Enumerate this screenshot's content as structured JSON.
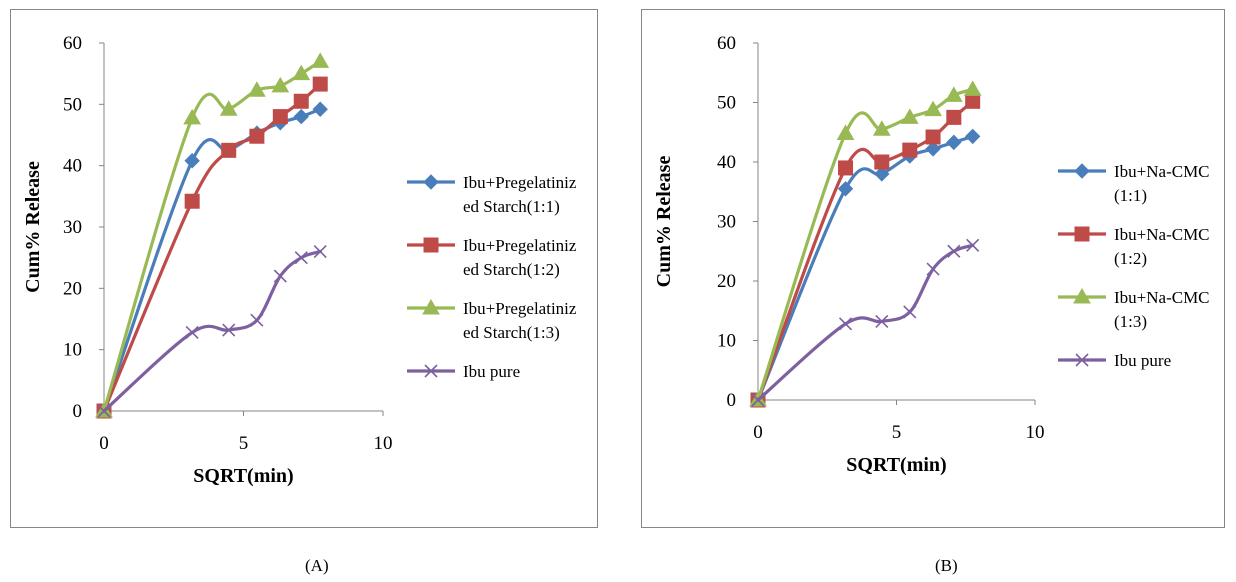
{
  "chart_data": [
    {
      "type": "line",
      "title": "",
      "xlabel": "SQRT(min)",
      "ylabel": "Cum% Release",
      "xlim": [
        0,
        10
      ],
      "ylim": [
        0,
        60
      ],
      "xticks": [
        0,
        5,
        10
      ],
      "yticks": [
        0,
        10,
        20,
        30,
        40,
        50,
        60
      ],
      "grid": false,
      "legend": "right",
      "smooth": true,
      "series": [
        {
          "name": "Ibu+Pregelatinized Starch(1:1)",
          "legend_lines": [
            "Ibu+Pregelatiniz",
            "ed Starch(1:1)"
          ],
          "color": "#4a7ebb",
          "marker": "diamond",
          "x": [
            0,
            3.16,
            4.47,
            5.48,
            6.32,
            7.07,
            7.75
          ],
          "y": [
            0,
            40.8,
            42.5,
            45.3,
            47.0,
            48.0,
            49.2
          ]
        },
        {
          "name": "Ibu+Pregelatinized Starch(1:2)",
          "legend_lines": [
            "Ibu+Pregelatiniz",
            "ed Starch(1:2)"
          ],
          "color": "#be4b48",
          "marker": "square",
          "x": [
            0,
            3.16,
            4.47,
            5.48,
            6.32,
            7.07,
            7.75
          ],
          "y": [
            0,
            34.2,
            42.5,
            44.8,
            48.0,
            50.5,
            53.3
          ]
        },
        {
          "name": "Ibu+Pregelatinized Starch(1:3)",
          "legend_lines": [
            "Ibu+Pregelatiniz",
            "ed Starch(1:3)"
          ],
          "color": "#98b954",
          "marker": "triangle",
          "x": [
            0,
            3.16,
            4.47,
            5.48,
            6.32,
            7.07,
            7.75
          ],
          "y": [
            0,
            47.8,
            49.2,
            52.3,
            53.0,
            55.0,
            57.0
          ]
        },
        {
          "name": "Ibu pure",
          "legend_lines": [
            "Ibu pure"
          ],
          "color": "#7d60a0",
          "marker": "x",
          "x": [
            0,
            3.16,
            4.47,
            5.48,
            6.32,
            7.07,
            7.75
          ],
          "y": [
            0,
            12.8,
            13.2,
            14.8,
            22.0,
            25.0,
            26.0
          ]
        }
      ]
    },
    {
      "type": "line",
      "title": "",
      "xlabel": "SQRT(min)",
      "ylabel": "Cum% Release",
      "xlim": [
        0,
        10
      ],
      "ylim": [
        0,
        60
      ],
      "xticks": [
        0,
        5,
        10
      ],
      "yticks": [
        0,
        10,
        20,
        30,
        40,
        50,
        60
      ],
      "grid": false,
      "legend": "right",
      "smooth": true,
      "series": [
        {
          "name": "Ibu+Na-CMC (1:1)",
          "legend_lines": [
            "Ibu+Na-CMC",
            "(1:1)"
          ],
          "color": "#4a7ebb",
          "marker": "diamond",
          "x": [
            0,
            3.16,
            4.47,
            5.48,
            6.32,
            7.07,
            7.75
          ],
          "y": [
            0,
            35.5,
            38.0,
            41.0,
            42.2,
            43.3,
            44.3
          ]
        },
        {
          "name": "Ibu+Na-CMC (1:2)",
          "legend_lines": [
            "Ibu+Na-CMC",
            "(1:2)"
          ],
          "color": "#be4b48",
          "marker": "square",
          "x": [
            0,
            3.16,
            4.47,
            5.48,
            6.32,
            7.07,
            7.75
          ],
          "y": [
            0,
            39.0,
            40.0,
            42.0,
            44.2,
            47.5,
            50.2
          ]
        },
        {
          "name": "Ibu+Na-CMC (1:3)",
          "legend_lines": [
            "Ibu+Na-CMC",
            "(1:3)"
          ],
          "color": "#98b954",
          "marker": "triangle",
          "x": [
            0,
            3.16,
            4.47,
            5.48,
            6.32,
            7.07,
            7.75
          ],
          "y": [
            0,
            44.8,
            45.5,
            47.5,
            48.8,
            51.2,
            52.2
          ]
        },
        {
          "name": "Ibu pure",
          "legend_lines": [
            "Ibu pure"
          ],
          "color": "#7d60a0",
          "marker": "x",
          "x": [
            0,
            3.16,
            4.47,
            5.48,
            6.32,
            7.07,
            7.75
          ],
          "y": [
            0,
            12.8,
            13.2,
            14.8,
            22.0,
            25.0,
            26.0
          ]
        }
      ]
    }
  ],
  "captions": [
    "(A)",
    "(B)"
  ]
}
